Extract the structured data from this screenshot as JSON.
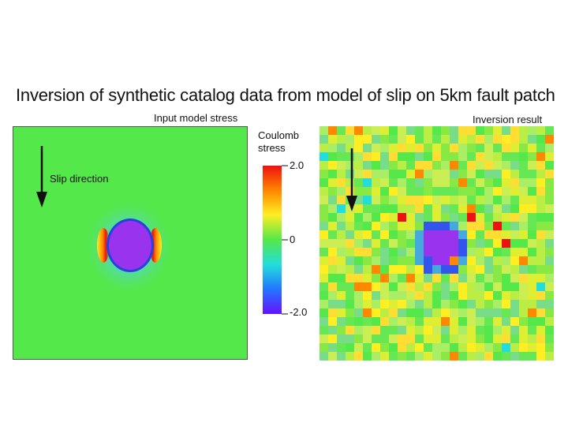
{
  "title": "Inversion of synthetic catalog data from model of slip on 5km fault patch",
  "left_panel": {
    "label": "Input model stress",
    "slip_label": "Slip direction",
    "background_color": "#55e84a",
    "patch_color": "#9933ee"
  },
  "right_panel": {
    "label": "Inversion result"
  },
  "colorbar": {
    "title_line1": "Coulomb",
    "title_line2": "stress",
    "tick_max": "2.0",
    "tick_mid": "0",
    "tick_min": "-2.0",
    "colors": [
      "#ee1111",
      "#ff8800",
      "#ffee22",
      "#55e84a",
      "#22dddd",
      "#2277ff",
      "#6611ff"
    ]
  }
}
